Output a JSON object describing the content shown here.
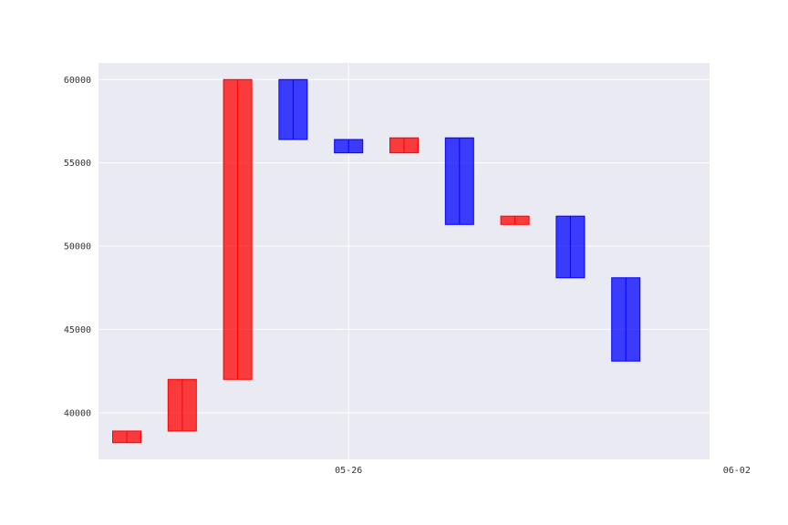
{
  "chart_data": {
    "type": "bar",
    "subtype": "candlestick-body",
    "x_tick_labels": [
      "05-26",
      "06-02"
    ],
    "y_ticks": [
      40000,
      45000,
      50000,
      55000,
      60000
    ],
    "ylim": [
      37200,
      61000
    ],
    "grid": true,
    "colors": {
      "up": "#ff0000",
      "down": "#0000ff",
      "background": "#eaeaf2",
      "grid": "#ffffff"
    },
    "bars": [
      {
        "date": "05-22",
        "open": 38200,
        "close": 38900,
        "direction": "up"
      },
      {
        "date": "05-23",
        "open": 38900,
        "close": 42000,
        "direction": "up"
      },
      {
        "date": "05-24",
        "open": 42000,
        "close": 60000,
        "direction": "up"
      },
      {
        "date": "05-25",
        "open": 60000,
        "close": 56400,
        "direction": "down"
      },
      {
        "date": "05-26",
        "open": 56400,
        "close": 55600,
        "direction": "down"
      },
      {
        "date": "05-27",
        "open": 55600,
        "close": 56500,
        "direction": "up"
      },
      {
        "date": "05-28",
        "open": 56500,
        "close": 51300,
        "direction": "down"
      },
      {
        "date": "05-29",
        "open": 51300,
        "close": 51800,
        "direction": "up"
      },
      {
        "date": "05-30",
        "open": 51800,
        "close": 48100,
        "direction": "down"
      },
      {
        "date": "05-31",
        "open": 48100,
        "close": 43100,
        "direction": "down"
      }
    ]
  }
}
